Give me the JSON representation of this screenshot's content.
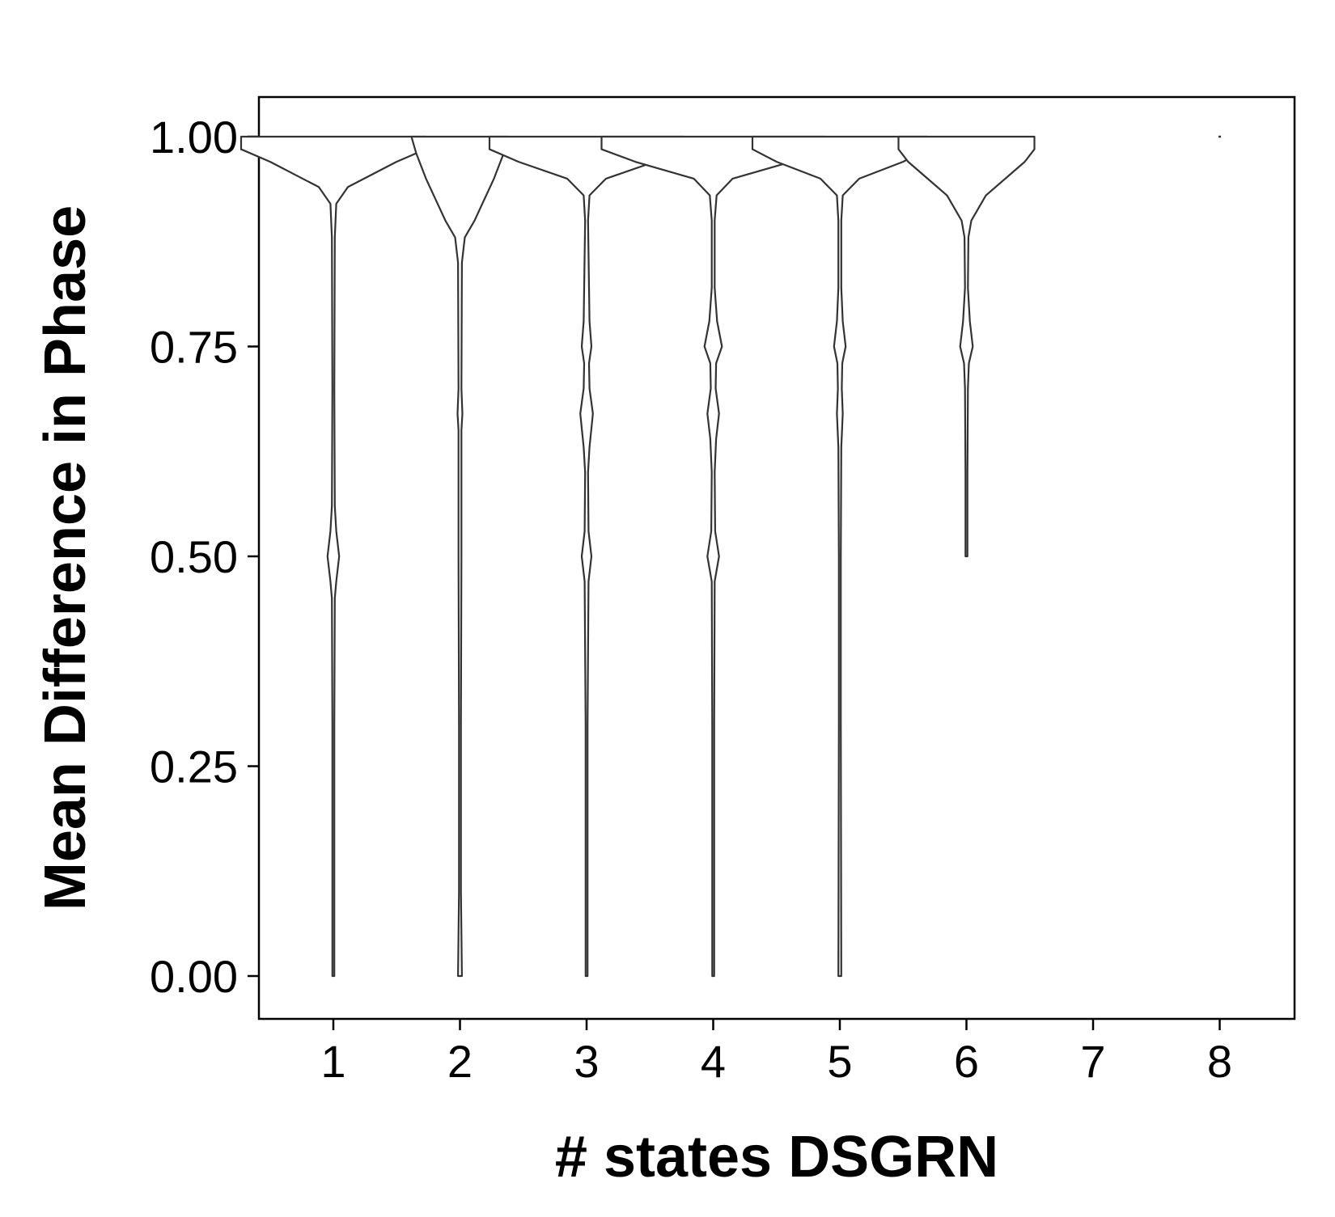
{
  "chart_data": {
    "type": "violin",
    "title": "",
    "xlabel": "# states DSGRN",
    "ylabel": "Mean Difference in Phase",
    "categories": [
      "1",
      "2",
      "3",
      "4",
      "5",
      "6",
      "7",
      "8"
    ],
    "ylim": [
      -0.04,
      1.04
    ],
    "yticks": [
      0.0,
      0.25,
      0.5,
      0.75,
      1.0
    ],
    "ytick_labels": [
      "0.00",
      "0.25",
      "0.50",
      "0.75",
      "1.00"
    ],
    "grid": false,
    "legend": "none",
    "colors": {
      "outline": "#333333",
      "fill": "#ffffff",
      "axis": "#000000"
    },
    "violins": [
      {
        "category": "1",
        "y_min": 0.0,
        "y_max": 1.0,
        "profile": [
          [
            0.0,
            0.002
          ],
          [
            0.1,
            0.002
          ],
          [
            0.3,
            0.002
          ],
          [
            0.45,
            0.003
          ],
          [
            0.47,
            0.006
          ],
          [
            0.5,
            0.012
          ],
          [
            0.53,
            0.006
          ],
          [
            0.56,
            0.003
          ],
          [
            0.7,
            0.002
          ],
          [
            0.88,
            0.003
          ],
          [
            0.92,
            0.006
          ],
          [
            0.94,
            0.03
          ],
          [
            0.97,
            0.13
          ],
          [
            0.985,
            0.19
          ],
          [
            1.0,
            0.19
          ]
        ]
      },
      {
        "category": "2",
        "y_min": 0.0,
        "y_max": 1.0,
        "profile": [
          [
            0.0,
            0.004
          ],
          [
            0.1,
            0.002
          ],
          [
            0.3,
            0.002
          ],
          [
            0.5,
            0.003
          ],
          [
            0.65,
            0.003
          ],
          [
            0.67,
            0.005
          ],
          [
            0.7,
            0.003
          ],
          [
            0.85,
            0.004
          ],
          [
            0.88,
            0.01
          ],
          [
            0.9,
            0.03
          ],
          [
            0.95,
            0.07
          ],
          [
            0.98,
            0.09
          ],
          [
            1.0,
            0.1
          ]
        ]
      },
      {
        "category": "3",
        "y_min": 0.0,
        "y_max": 1.0,
        "profile": [
          [
            0.0,
            0.002
          ],
          [
            0.3,
            0.002
          ],
          [
            0.47,
            0.004
          ],
          [
            0.5,
            0.01
          ],
          [
            0.53,
            0.004
          ],
          [
            0.6,
            0.003
          ],
          [
            0.63,
            0.006
          ],
          [
            0.67,
            0.013
          ],
          [
            0.7,
            0.006
          ],
          [
            0.73,
            0.005
          ],
          [
            0.75,
            0.01
          ],
          [
            0.78,
            0.006
          ],
          [
            0.9,
            0.003
          ],
          [
            0.93,
            0.006
          ],
          [
            0.95,
            0.04
          ],
          [
            0.97,
            0.14
          ],
          [
            0.985,
            0.2
          ],
          [
            1.0,
            0.2
          ]
        ]
      },
      {
        "category": "4",
        "y_min": 0.0,
        "y_max": 1.0,
        "profile": [
          [
            0.0,
            0.002
          ],
          [
            0.3,
            0.002
          ],
          [
            0.47,
            0.003
          ],
          [
            0.5,
            0.012
          ],
          [
            0.53,
            0.004
          ],
          [
            0.6,
            0.003
          ],
          [
            0.64,
            0.006
          ],
          [
            0.67,
            0.012
          ],
          [
            0.7,
            0.005
          ],
          [
            0.73,
            0.006
          ],
          [
            0.75,
            0.018
          ],
          [
            0.78,
            0.008
          ],
          [
            0.82,
            0.003
          ],
          [
            0.9,
            0.003
          ],
          [
            0.93,
            0.007
          ],
          [
            0.95,
            0.04
          ],
          [
            0.97,
            0.16
          ],
          [
            0.985,
            0.23
          ],
          [
            1.0,
            0.23
          ]
        ]
      },
      {
        "category": "5",
        "y_min": 0.0,
        "y_max": 1.0,
        "profile": [
          [
            0.0,
            0.003
          ],
          [
            0.3,
            0.002
          ],
          [
            0.5,
            0.002
          ],
          [
            0.63,
            0.003
          ],
          [
            0.67,
            0.006
          ],
          [
            0.7,
            0.004
          ],
          [
            0.73,
            0.005
          ],
          [
            0.75,
            0.012
          ],
          [
            0.78,
            0.006
          ],
          [
            0.82,
            0.003
          ],
          [
            0.9,
            0.003
          ],
          [
            0.93,
            0.006
          ],
          [
            0.95,
            0.04
          ],
          [
            0.97,
            0.13
          ],
          [
            0.985,
            0.18
          ],
          [
            1.0,
            0.18
          ]
        ]
      },
      {
        "category": "6",
        "y_min": 0.5,
        "y_max": 1.0,
        "profile": [
          [
            0.5,
            0.002
          ],
          [
            0.6,
            0.002
          ],
          [
            0.7,
            0.003
          ],
          [
            0.73,
            0.005
          ],
          [
            0.75,
            0.013
          ],
          [
            0.78,
            0.007
          ],
          [
            0.82,
            0.003
          ],
          [
            0.88,
            0.004
          ],
          [
            0.9,
            0.01
          ],
          [
            0.93,
            0.04
          ],
          [
            0.97,
            0.12
          ],
          [
            0.985,
            0.14
          ],
          [
            1.0,
            0.14
          ]
        ]
      },
      {
        "category": "7",
        "y_min": null,
        "y_max": null,
        "profile": []
      },
      {
        "category": "8",
        "y_min": 1.0,
        "y_max": 1.0,
        "profile": [
          [
            1.0,
            0.002
          ]
        ]
      }
    ]
  }
}
